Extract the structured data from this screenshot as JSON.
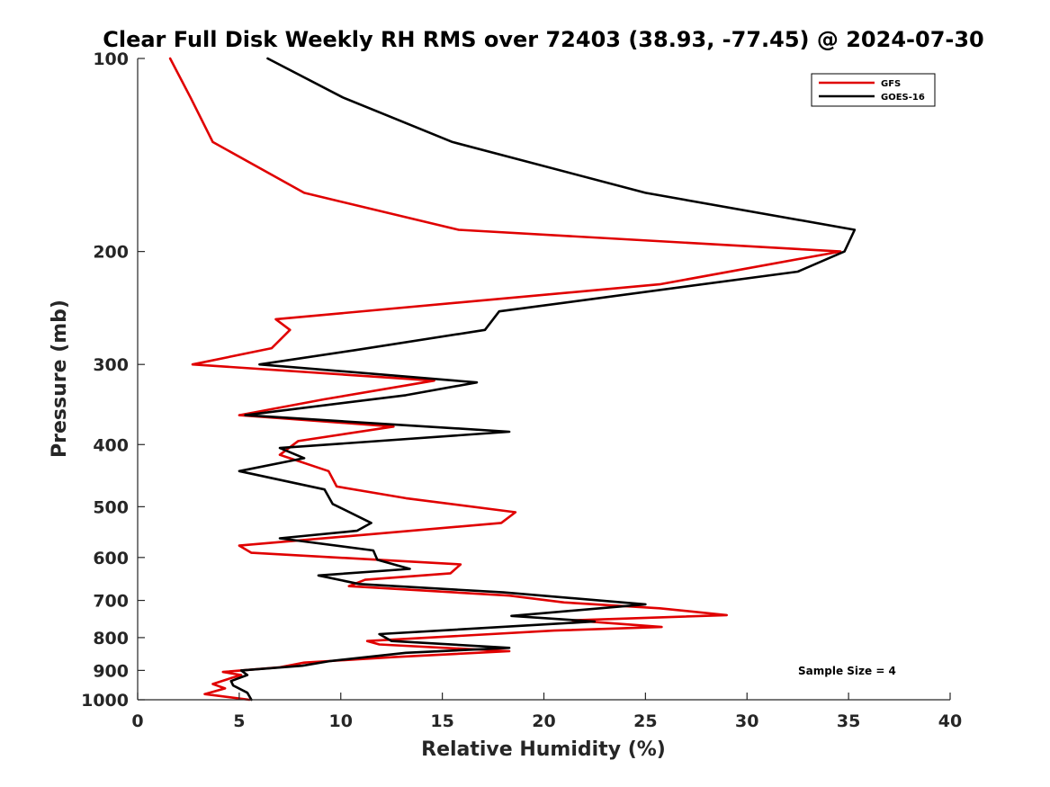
{
  "chart_data": {
    "type": "line",
    "title": "Clear Full Disk Weekly RH RMS over 72403 (38.93, -77.45) @ 2024-07-30",
    "xlabel": "Relative Humidity (%)",
    "ylabel": "Pressure (mb)",
    "xlim": [
      0,
      40
    ],
    "ylim": [
      100,
      1000
    ],
    "y_scale": "log",
    "y_reversed": true,
    "x_ticks": [
      0,
      5,
      10,
      15,
      20,
      25,
      30,
      35,
      40
    ],
    "x_tick_labels": [
      "0",
      "5",
      "10",
      "15",
      "20",
      "25",
      "30",
      "35",
      "40"
    ],
    "y_ticks": [
      100,
      200,
      300,
      400,
      500,
      600,
      700,
      800,
      900,
      1000
    ],
    "y_tick_labels": [
      "100",
      "200",
      "300",
      "400",
      "500",
      "600",
      "700",
      "800",
      "900",
      "1000"
    ],
    "grid": false,
    "legend_position": "top-right",
    "annotation": "Sample Size = 4",
    "series": [
      {
        "name": "GFS",
        "color": "#e00000",
        "points": [
          [
            1.6,
            100
          ],
          [
            2.6,
            115
          ],
          [
            3.7,
            135
          ],
          [
            8.2,
            162
          ],
          [
            15.8,
            185
          ],
          [
            34.6,
            200
          ],
          [
            25.7,
            225
          ],
          [
            6.8,
            255
          ],
          [
            7.5,
            265
          ],
          [
            6.6,
            283
          ],
          [
            2.7,
            300
          ],
          [
            14.6,
            318
          ],
          [
            9.2,
            340
          ],
          [
            5.0,
            360
          ],
          [
            12.6,
            375
          ],
          [
            7.9,
            395
          ],
          [
            7.0,
            415
          ],
          [
            9.4,
            440
          ],
          [
            9.8,
            465
          ],
          [
            13.2,
            485
          ],
          [
            18.6,
            510
          ],
          [
            17.9,
            530
          ],
          [
            5.0,
            575
          ],
          [
            5.6,
            590
          ],
          [
            15.9,
            615
          ],
          [
            15.4,
            635
          ],
          [
            11.2,
            650
          ],
          [
            10.4,
            665
          ],
          [
            18.3,
            688
          ],
          [
            21.0,
            705
          ],
          [
            25.7,
            720
          ],
          [
            29.0,
            738
          ],
          [
            21.4,
            752
          ],
          [
            25.8,
            770
          ],
          [
            20.5,
            780
          ],
          [
            11.3,
            810
          ],
          [
            11.9,
            820
          ],
          [
            18.3,
            840
          ],
          [
            12.6,
            858
          ],
          [
            8.2,
            875
          ],
          [
            7.0,
            890
          ],
          [
            4.2,
            905
          ],
          [
            5.1,
            915
          ],
          [
            4.6,
            925
          ],
          [
            3.7,
            945
          ],
          [
            4.3,
            960
          ],
          [
            3.3,
            980
          ],
          [
            5.5,
            1000
          ]
        ]
      },
      {
        "name": "GOES-16",
        "color": "#000000",
        "points": [
          [
            6.4,
            100
          ],
          [
            10.1,
            115
          ],
          [
            15.5,
            135
          ],
          [
            25.0,
            162
          ],
          [
            35.3,
            185
          ],
          [
            34.8,
            200
          ],
          [
            32.5,
            215
          ],
          [
            17.8,
            248
          ],
          [
            17.1,
            265
          ],
          [
            10.7,
            285
          ],
          [
            6.0,
            300
          ],
          [
            16.7,
            320
          ],
          [
            13.2,
            335
          ],
          [
            5.3,
            360
          ],
          [
            18.3,
            382
          ],
          [
            7.0,
            405
          ],
          [
            8.2,
            420
          ],
          [
            5.0,
            440
          ],
          [
            9.2,
            470
          ],
          [
            9.6,
            495
          ],
          [
            11.5,
            530
          ],
          [
            10.8,
            545
          ],
          [
            7.0,
            560
          ],
          [
            11.6,
            585
          ],
          [
            11.8,
            605
          ],
          [
            13.4,
            625
          ],
          [
            8.9,
            640
          ],
          [
            10.9,
            660
          ],
          [
            18.0,
            680
          ],
          [
            25.0,
            710
          ],
          [
            18.4,
            740
          ],
          [
            22.5,
            755
          ],
          [
            11.9,
            790
          ],
          [
            12.5,
            810
          ],
          [
            18.3,
            830
          ],
          [
            13.2,
            845
          ],
          [
            9.5,
            870
          ],
          [
            8.1,
            885
          ],
          [
            5.1,
            900
          ],
          [
            5.4,
            915
          ],
          [
            4.6,
            935
          ],
          [
            4.7,
            950
          ],
          [
            5.4,
            975
          ],
          [
            5.6,
            1000
          ]
        ]
      }
    ]
  }
}
